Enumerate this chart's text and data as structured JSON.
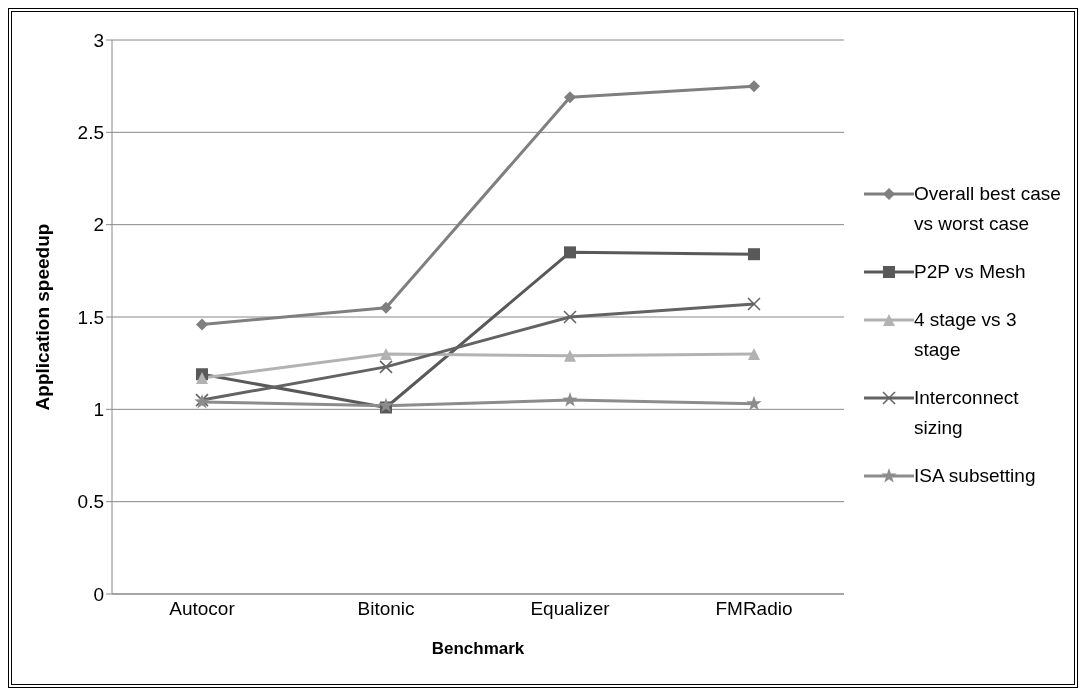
{
  "chart_data": {
    "type": "line",
    "xlabel": "Benchmark",
    "ylabel": "Application speedup",
    "categories": [
      "Autocor",
      "Bitonic",
      "Equalizer",
      "FMRadio"
    ],
    "ylim": [
      0,
      3
    ],
    "yticks": [
      0,
      0.5,
      1,
      1.5,
      2,
      2.5,
      3
    ],
    "grid": "y",
    "legend": "right",
    "line_style": "solid",
    "series": [
      {
        "name": "Overall best case vs worst case",
        "color": "#7f7f7f",
        "marker": "diamond",
        "values": [
          1.46,
          1.55,
          2.69,
          2.75
        ]
      },
      {
        "name": "P2P vs Mesh",
        "color": "#595959",
        "marker": "square",
        "values": [
          1.19,
          1.01,
          1.85,
          1.84
        ]
      },
      {
        "name": "4 stage vs 3 stage",
        "color": "#b2b2b2",
        "marker": "triangle",
        "values": [
          1.17,
          1.3,
          1.29,
          1.3
        ]
      },
      {
        "name": "Interconnect sizing",
        "color": "#636363",
        "marker": "cross",
        "values": [
          1.05,
          1.23,
          1.5,
          1.57
        ]
      },
      {
        "name": "ISA subsetting",
        "color": "#8c8c8c",
        "marker": "star",
        "values": [
          1.04,
          1.02,
          1.05,
          1.03
        ]
      }
    ]
  }
}
